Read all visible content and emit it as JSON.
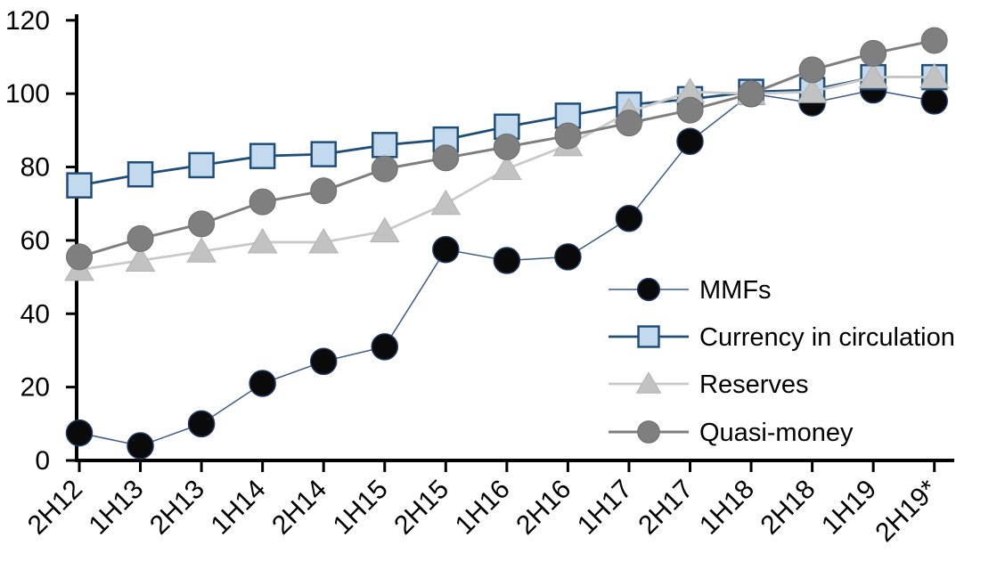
{
  "chart_data": {
    "type": "line",
    "title": "",
    "xlabel": "",
    "ylabel": "",
    "grid": false,
    "legend_position": "inside-right",
    "axis_color": "#000000",
    "ylim": [
      0,
      120
    ],
    "yticks": [
      0,
      20,
      40,
      60,
      80,
      100,
      120
    ],
    "categories": [
      "2H12",
      "1H13",
      "2H13",
      "1H14",
      "2H14",
      "1H15",
      "2H15",
      "1H16",
      "2H16",
      "1H17",
      "2H17",
      "1H18",
      "2H18",
      "1H19",
      "2H19*"
    ],
    "series": [
      {
        "name": "MMFs",
        "marker": "circle",
        "values": [
          7.5,
          4,
          10,
          21,
          27,
          31,
          57.5,
          54.5,
          55.5,
          66,
          87,
          100,
          97.5,
          101,
          98
        ],
        "line_color": "#3A5A8C",
        "line_width": 1.5,
        "marker_fill": "#0A0A0A",
        "marker_stroke": "#1F3864",
        "marker_stroke_width": 1.5
      },
      {
        "name": "Currency in circulation",
        "marker": "square",
        "values": [
          75,
          78,
          80.5,
          83,
          83.5,
          86,
          87.5,
          91,
          94,
          97,
          98.5,
          100.5,
          101,
          104.5,
          104.5
        ],
        "line_color": "#1F4E79",
        "line_width": 2.8,
        "marker_fill": "#C2D9EE",
        "marker_stroke": "#1F4E79",
        "marker_stroke_width": 2.5
      },
      {
        "name": "Reserves",
        "marker": "triangle",
        "values": [
          52,
          54.5,
          57,
          59.5,
          59.5,
          62.5,
          70,
          79.5,
          86,
          95,
          100.5,
          100,
          100.5,
          104.5,
          104.5
        ],
        "line_color": "#C9C9C9",
        "line_width": 2.8,
        "marker_fill": "#C2C2C2",
        "marker_stroke": "#B2B2B2",
        "marker_stroke_width": 1
      },
      {
        "name": "Quasi-money",
        "marker": "circle",
        "values": [
          55.5,
          60.5,
          64.5,
          70.5,
          73.5,
          79.5,
          82.5,
          85.5,
          88.5,
          92,
          95.5,
          100,
          106.5,
          111,
          114.5
        ],
        "line_color": "#7F7F7F",
        "line_width": 3,
        "marker_fill": "#7F7F7F",
        "marker_stroke": "#6E6E6E",
        "marker_stroke_width": 1
      }
    ]
  }
}
